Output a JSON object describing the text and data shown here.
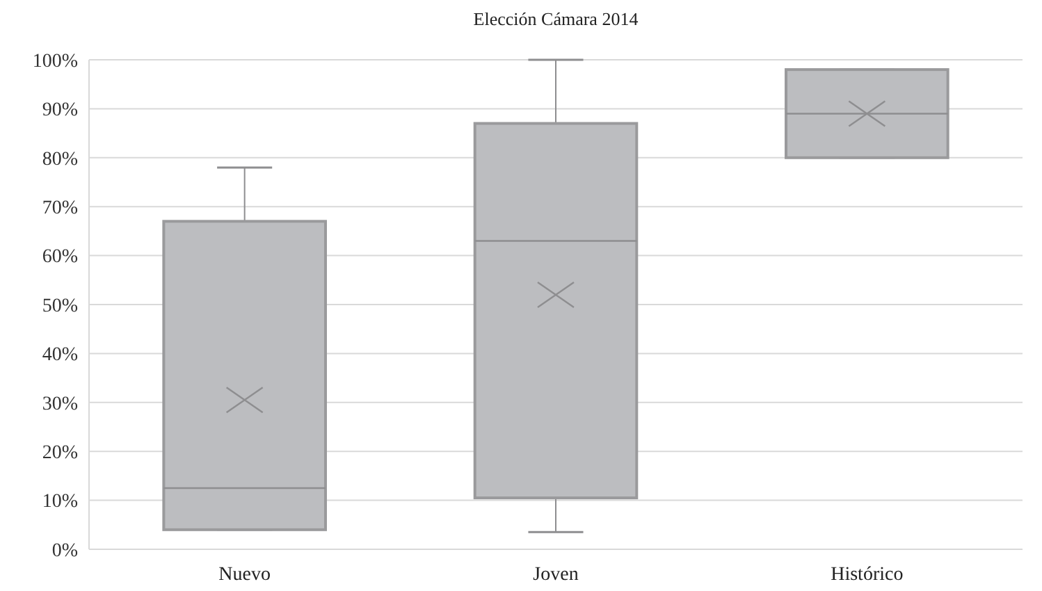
{
  "chart_data": {
    "type": "box",
    "title": "Elección Cámara 2014",
    "categories": [
      "Nuevo",
      "Joven",
      "Histórico"
    ],
    "boxes": [
      {
        "low": 4,
        "q1": 4,
        "median": 12.5,
        "q3": 67,
        "high": 78,
        "mean": 30.5
      },
      {
        "low": 3.5,
        "q1": 10.5,
        "median": 63,
        "q3": 87,
        "high": 100,
        "mean": 52
      },
      {
        "low": 80,
        "q1": 80,
        "median": 89,
        "q3": 98,
        "high": 98,
        "mean": 89
      }
    ],
    "color": "#bcbdc0",
    "ylim": [
      0,
      100
    ],
    "yticks": [
      {
        "value": 0,
        "label": "0%"
      },
      {
        "value": 10,
        "label": "10%"
      },
      {
        "value": 20,
        "label": "20%"
      },
      {
        "value": 30,
        "label": "30%"
      },
      {
        "value": 40,
        "label": "40%"
      },
      {
        "value": 50,
        "label": "50%"
      },
      {
        "value": 60,
        "label": "60%"
      },
      {
        "value": 70,
        "label": "70%"
      },
      {
        "value": 80,
        "label": "80%"
      },
      {
        "value": 90,
        "label": "90%"
      },
      {
        "value": 100,
        "label": "100%"
      }
    ],
    "grid": "y",
    "marker": "cross"
  }
}
